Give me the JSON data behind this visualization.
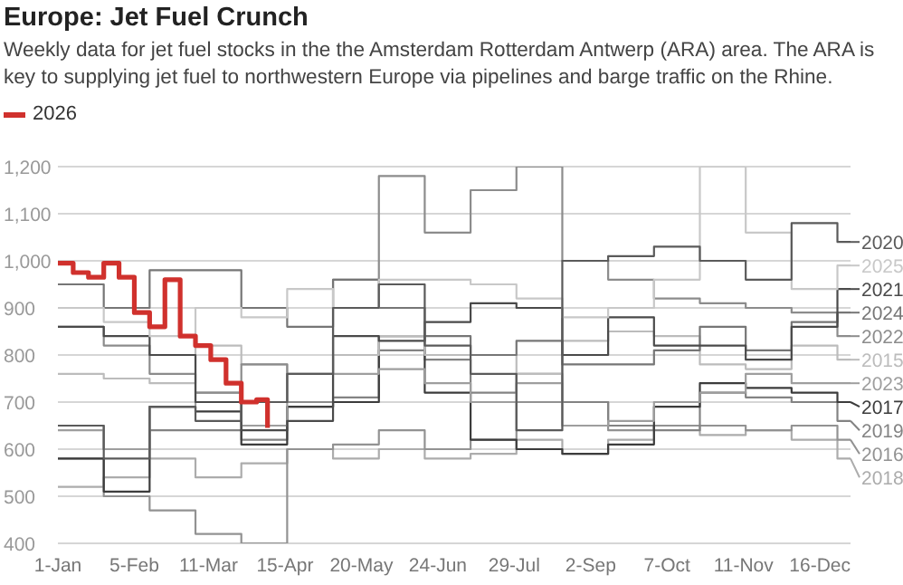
{
  "chart_data": {
    "type": "step",
    "title": "Europe: Jet Fuel Crunch",
    "subtitle": "Weekly data for jet fuel stocks in the the Amsterdam Rotterdam Antwerp (ARA) area. The ARA is key to supplying jet fuel to northwestern Europe via pipelines and barge traffic on the Rhine.",
    "x": [
      "--01-01",
      "--01-22",
      "--02-12",
      "--03-05",
      "--03-26",
      "--04-16",
      "--05-07",
      "--05-28",
      "--06-18",
      "--07-09",
      "--07-30",
      "--08-20",
      "--09-10",
      "--10-01",
      "--10-22",
      "--11-12",
      "--12-03",
      "--12-24",
      "--12-30"
    ],
    "series": [
      {
        "name": "2026",
        "color": "#d0312d",
        "x": [
          "--01-01",
          "--01-08",
          "--01-15",
          "--01-22",
          "--01-29",
          "--02-05",
          "--02-12",
          "--02-19",
          "--02-26",
          "--03-05",
          "--03-12",
          "--03-19",
          "--03-26",
          "--04-02",
          "--04-07"
        ],
        "values": [
          995,
          975,
          965,
          995,
          965,
          890,
          860,
          960,
          840,
          820,
          790,
          740,
          700,
          705,
          645
        ]
      },
      {
        "name": "2020",
        "color": "#5a5a5a",
        "values": [
          650,
          580,
          690,
          660,
          700,
          760,
          900,
          950,
          820,
          760,
          640,
          1000,
          1010,
          1030,
          1000,
          960,
          1080,
          1040,
          1040
        ]
      },
      {
        "name": "2025",
        "color": "#c8c8c8",
        "values": [
          900,
          870,
          840,
          900,
          880,
          940,
          900,
          960,
          960,
          950,
          920,
          880,
          900,
          960,
          1200,
          1060,
          940,
          990,
          990
        ]
      },
      {
        "name": "2021",
        "color": "#4a4a4a",
        "values": [
          860,
          840,
          800,
          700,
          640,
          660,
          840,
          830,
          870,
          910,
          900,
          800,
          880,
          820,
          820,
          790,
          860,
          940,
          940
        ]
      },
      {
        "name": "2024",
        "color": "#767676",
        "values": [
          950,
          900,
          980,
          980,
          900,
          860,
          960,
          900,
          840,
          800,
          830,
          780,
          780,
          810,
          860,
          810,
          870,
          890,
          890
        ]
      },
      {
        "name": "2022",
        "color": "#8c8c8c",
        "values": [
          860,
          820,
          760,
          720,
          780,
          700,
          960,
          1180,
          1060,
          1150,
          1200,
          1000,
          960,
          920,
          910,
          900,
          890,
          840,
          840
        ]
      },
      {
        "name": "2015",
        "color": "#bcbcbc",
        "values": [
          760,
          750,
          740,
          820,
          780,
          760,
          800,
          840,
          800,
          800,
          760,
          830,
          850,
          840,
          780,
          770,
          820,
          790,
          790
        ]
      },
      {
        "name": "2023",
        "color": "#9e9e9e",
        "values": [
          640,
          600,
          690,
          720,
          650,
          760,
          760,
          770,
          740,
          700,
          740,
          650,
          660,
          700,
          720,
          760,
          740,
          740,
          740
        ]
      },
      {
        "name": "2017",
        "color": "#3c3c3c",
        "values": [
          580,
          510,
          690,
          680,
          610,
          690,
          700,
          840,
          720,
          620,
          600,
          590,
          610,
          690,
          740,
          730,
          720,
          700,
          700
        ]
      },
      {
        "name": "2019",
        "color": "#838383",
        "values": [
          650,
          600,
          640,
          640,
          620,
          690,
          710,
          810,
          790,
          720,
          760,
          700,
          650,
          640,
          720,
          710,
          700,
          660,
          660
        ]
      },
      {
        "name": "2016",
        "color": "#929292",
        "values": [
          580,
          500,
          470,
          420,
          400,
          600,
          610,
          640,
          600,
          620,
          700,
          700,
          640,
          650,
          650,
          640,
          650,
          620,
          620
        ]
      },
      {
        "name": "2018",
        "color": "#acacac",
        "values": [
          520,
          540,
          580,
          540,
          570,
          600,
          580,
          600,
          580,
          590,
          620,
          590,
          620,
          650,
          630,
          640,
          620,
          580,
          580
        ]
      }
    ],
    "xlim": [
      "--01-01",
      "--12-30"
    ],
    "xticks": [
      {
        "value": "--01-01",
        "label": "1-Jan"
      },
      {
        "value": "--02-05",
        "label": "5-Feb"
      },
      {
        "value": "--03-11",
        "label": "11-Mar"
      },
      {
        "value": "--04-15",
        "label": "15-Apr"
      },
      {
        "value": "--05-20",
        "label": "20-May"
      },
      {
        "value": "--06-24",
        "label": "24-Jun"
      },
      {
        "value": "--07-29",
        "label": "29-Jul"
      },
      {
        "value": "--09-02",
        "label": "2-Sep"
      },
      {
        "value": "--10-07",
        "label": "7-Oct"
      },
      {
        "value": "--11-11",
        "label": "11-Nov"
      },
      {
        "value": "--12-16",
        "label": "16-Dec"
      }
    ],
    "ylim": [
      400,
      1200
    ],
    "yticks": [
      {
        "value": 400,
        "label": "400"
      },
      {
        "value": 500,
        "label": "500"
      },
      {
        "value": 600,
        "label": "600"
      },
      {
        "value": 700,
        "label": "700"
      },
      {
        "value": 800,
        "label": "800"
      },
      {
        "value": 900,
        "label": "900"
      },
      {
        "value": 1000,
        "label": "1,000"
      },
      {
        "value": 1100,
        "label": "1,100"
      },
      {
        "value": 1200,
        "label": "1,200"
      }
    ],
    "grid": "y",
    "legend": "top left",
    "marker": "none",
    "line_style": "solid"
  }
}
